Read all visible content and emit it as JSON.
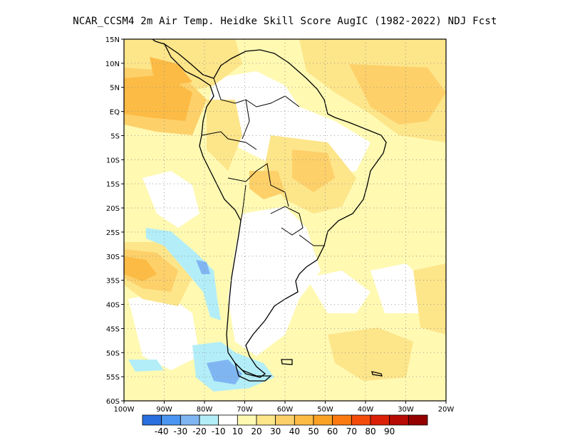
{
  "title": "NCAR_CCSM4  2m Air Temp. Heidke Skill Score AugIC (1982-2022) NDJ Fcst",
  "map": {
    "lat_labels": [
      "15N",
      "10N",
      "5N",
      "EQ",
      "5S",
      "10S",
      "15S",
      "20S",
      "25S",
      "30S",
      "35S",
      "40S",
      "45S",
      "50S",
      "55S",
      "60S"
    ],
    "lon_labels": [
      "100W",
      "90W",
      "80W",
      "70W",
      "60W",
      "50W",
      "40W",
      "30W",
      "20W"
    ],
    "lat_range": [
      -60,
      15
    ],
    "lon_range": [
      -100,
      -20
    ],
    "grid": "dotted"
  },
  "colorbar": {
    "colors": [
      "#2a6fdf",
      "#4a95ef",
      "#7fb6f2",
      "#b3eef8",
      "#ffffff",
      "#fff9b2",
      "#fde58a",
      "#fdd06a",
      "#fcbb45",
      "#fba225",
      "#fb7a10",
      "#f44b0b",
      "#dc2008",
      "#b80a04",
      "#920000"
    ],
    "labels": [
      "-40",
      "-30",
      "-20",
      "-10",
      "10",
      "20",
      "30",
      "40",
      "50",
      "60",
      "70",
      "80",
      "90"
    ]
  }
}
